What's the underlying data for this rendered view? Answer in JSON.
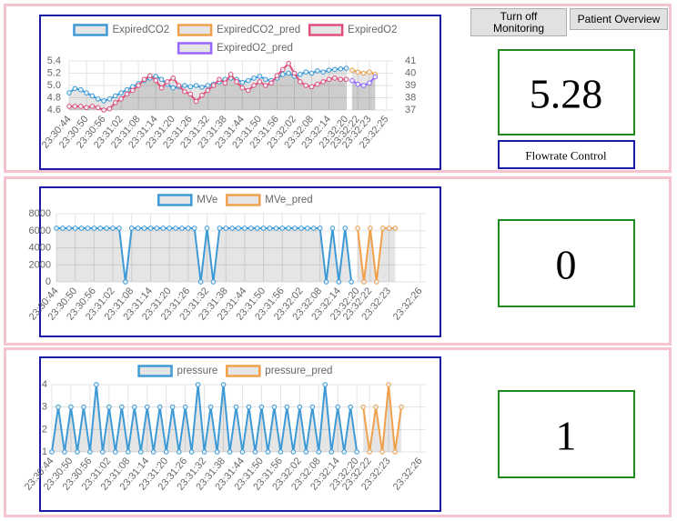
{
  "buttons": [
    "Turn off Monitoring",
    "Patient Overview"
  ],
  "flowrate_control": "Flowrate Control",
  "displays": [
    5.28,
    0,
    1
  ],
  "chart_data": [
    {
      "type": "line",
      "legend": "top",
      "grid": true,
      "categories": [
        "23:30:44",
        null,
        null,
        "23:30:50",
        null,
        null,
        "23:30:56",
        null,
        null,
        "23:31:02",
        null,
        null,
        "23:31:08",
        null,
        null,
        "23:31:14",
        null,
        null,
        "23:31:20",
        null,
        null,
        "23:31:26",
        null,
        null,
        "23:31:32",
        null,
        null,
        "23:31:38",
        null,
        null,
        "23:31:44",
        null,
        null,
        "23:31:50",
        null,
        null,
        "23:31:56",
        null,
        null,
        "23:32:02",
        null,
        null,
        "23:32:08",
        null,
        null,
        "23:32:14",
        null,
        null,
        "23:32:20",
        null,
        "23:32:22",
        null,
        "23:32:23",
        null,
        null,
        "23:32:25"
      ],
      "ylim": [
        4.6,
        5.4
      ],
      "yticks": [
        4.6,
        4.8,
        {
          "value": 5,
          "label": "5.0"
        },
        5.2,
        5.4
      ],
      "y2lim": [
        37,
        41
      ],
      "y2ticks": [
        37,
        38,
        39,
        40,
        41
      ],
      "series": [
        {
          "name": "ExpiredCO2",
          "color": "#3d9ad6",
          "values": [
            4.88,
            4.95,
            4.93,
            4.88,
            4.83,
            4.78,
            4.75,
            4.78,
            4.83,
            4.88,
            4.93,
            4.98,
            5.03,
            5.08,
            5.12,
            5.15,
            5.1,
            5.02,
            4.96,
            4.98,
            5.0,
            4.98,
            5.0,
            4.97,
            5.0,
            5.02,
            5.06,
            5.1,
            5.12,
            5.1,
            5.05,
            5.08,
            5.12,
            5.15,
            5.1,
            5.08,
            5.12,
            5.18,
            5.2,
            5.15,
            5.18,
            5.22,
            5.2,
            5.24,
            5.22,
            5.25,
            5.26,
            5.27,
            5.28,
            null,
            null,
            null,
            null,
            null,
            null,
            null
          ]
        },
        {
          "name": "ExpiredCO2_pred",
          "color": "#f0a04b",
          "values": [
            null,
            null,
            null,
            null,
            null,
            null,
            null,
            null,
            null,
            null,
            null,
            null,
            null,
            null,
            null,
            null,
            null,
            null,
            null,
            null,
            null,
            null,
            null,
            null,
            null,
            null,
            null,
            null,
            null,
            null,
            null,
            null,
            null,
            null,
            null,
            null,
            null,
            null,
            null,
            null,
            null,
            null,
            null,
            null,
            null,
            null,
            null,
            null,
            null,
            5.25,
            5.22,
            5.2,
            5.22,
            5.18,
            null,
            null
          ]
        },
        {
          "name": "ExpiredO2",
          "color": "#e0507b",
          "axis": "y2",
          "values": [
            37.3,
            37.3,
            37.3,
            37.2,
            37.3,
            37.2,
            37.0,
            37.1,
            37.6,
            37.9,
            38.3,
            38.6,
            39.0,
            39.5,
            39.8,
            39.4,
            38.8,
            39.3,
            39.6,
            39.0,
            38.5,
            38.3,
            37.7,
            38.2,
            38.6,
            39.0,
            39.5,
            39.2,
            39.9,
            39.3,
            38.8,
            38.6,
            39.0,
            39.3,
            39.0,
            39.2,
            39.8,
            40.3,
            40.8,
            40.0,
            39.3,
            39.0,
            38.9,
            39.1,
            39.3,
            39.5,
            39.6,
            39.5,
            39.5,
            null,
            null,
            null,
            null,
            null,
            null,
            null
          ]
        },
        {
          "name": "ExpiredO2_pred",
          "color": "#9966ff",
          "axis": "y2",
          "values": [
            null,
            null,
            null,
            null,
            null,
            null,
            null,
            null,
            null,
            null,
            null,
            null,
            null,
            null,
            null,
            null,
            null,
            null,
            null,
            null,
            null,
            null,
            null,
            null,
            null,
            null,
            null,
            null,
            null,
            null,
            null,
            null,
            null,
            null,
            null,
            null,
            null,
            null,
            null,
            null,
            null,
            null,
            null,
            null,
            null,
            null,
            null,
            null,
            null,
            39.4,
            39.1,
            39.0,
            39.2,
            39.7,
            null,
            null
          ]
        }
      ]
    },
    {
      "type": "line",
      "legend": "top",
      "grid": true,
      "categories": [
        "23:30:44",
        null,
        null,
        "23:30:50",
        null,
        null,
        "23:30:56",
        null,
        null,
        "23:31:02",
        null,
        null,
        "23:31:08",
        null,
        null,
        "23:31:14",
        null,
        null,
        "23:31:20",
        null,
        null,
        "23:31:26",
        null,
        null,
        "23:31:32",
        null,
        null,
        "23:31:38",
        null,
        null,
        "23:31:44",
        null,
        null,
        "23:31:50",
        null,
        null,
        "23:31:56",
        null,
        null,
        "23:32:02",
        null,
        null,
        "23:32:08",
        null,
        null,
        "23:32:14",
        null,
        null,
        "23:32:20",
        null,
        "23:32:22",
        null,
        null,
        "23:32:23",
        null,
        null,
        null,
        null,
        "23:32:26"
      ],
      "ylim": [
        0,
        8000
      ],
      "yticks": [
        0,
        2000,
        4000,
        6000,
        8000
      ],
      "series": [
        {
          "name": "MVe",
          "color": "#3d9ad6",
          "values": [
            6300,
            6300,
            6300,
            6300,
            6300,
            6300,
            6300,
            6300,
            6300,
            6300,
            6300,
            0,
            6300,
            6300,
            6300,
            6300,
            6300,
            6300,
            6300,
            6300,
            6300,
            6300,
            6300,
            0,
            6300,
            0,
            6300,
            6300,
            6300,
            6300,
            6300,
            6300,
            6300,
            6300,
            6300,
            6300,
            6300,
            6300,
            6300,
            6300,
            6300,
            6300,
            6300,
            0,
            6300,
            0,
            6300,
            0,
            null,
            null,
            null,
            null,
            null,
            null,
            null,
            null,
            null,
            null,
            null
          ]
        },
        {
          "name": "MVe_pred",
          "color": "#f0a04b",
          "values": [
            null,
            null,
            null,
            null,
            null,
            null,
            null,
            null,
            null,
            null,
            null,
            null,
            null,
            null,
            null,
            null,
            null,
            null,
            null,
            null,
            null,
            null,
            null,
            null,
            null,
            null,
            null,
            null,
            null,
            null,
            null,
            null,
            null,
            null,
            null,
            null,
            null,
            null,
            null,
            null,
            null,
            null,
            null,
            null,
            null,
            null,
            null,
            null,
            6300,
            0,
            6300,
            0,
            6300,
            6300,
            6300,
            null,
            null,
            null,
            null
          ]
        }
      ]
    },
    {
      "type": "line",
      "legend": "top",
      "grid": true,
      "categories": [
        "23:30:44",
        null,
        null,
        "23:30:50",
        null,
        null,
        "23:30:56",
        null,
        null,
        "23:31:02",
        null,
        null,
        "23:31:08",
        null,
        null,
        "23:31:14",
        null,
        null,
        "23:31:20",
        null,
        null,
        "23:31:26",
        null,
        null,
        "23:31:32",
        null,
        null,
        "23:31:38",
        null,
        null,
        "23:31:44",
        null,
        null,
        "23:31:50",
        null,
        null,
        "23:31:56",
        null,
        null,
        "23:32:02",
        null,
        null,
        "23:32:08",
        null,
        null,
        "23:32:14",
        null,
        null,
        "23:32:20",
        null,
        "23:32:22",
        null,
        null,
        "23:32:23",
        null,
        null,
        null,
        null,
        "23:32:26"
      ],
      "ylim": [
        1,
        4
      ],
      "yticks": [
        1,
        2,
        3,
        4
      ],
      "series": [
        {
          "name": "pressure",
          "color": "#3d9ad6",
          "values": [
            1,
            3,
            1,
            3,
            1,
            3,
            1,
            4,
            1,
            3,
            1,
            3,
            1,
            3,
            1,
            3,
            1,
            3,
            1,
            3,
            1,
            3,
            1,
            4,
            1,
            3,
            1,
            4,
            1,
            3,
            1,
            3,
            1,
            3,
            1,
            3,
            1,
            3,
            1,
            3,
            1,
            3,
            1,
            4,
            1,
            3,
            1,
            3,
            1,
            null,
            null,
            null,
            null,
            null,
            null,
            null,
            null,
            null,
            null
          ]
        },
        {
          "name": "pressure_pred",
          "color": "#f0a04b",
          "values": [
            null,
            null,
            null,
            null,
            null,
            null,
            null,
            null,
            null,
            null,
            null,
            null,
            null,
            null,
            null,
            null,
            null,
            null,
            null,
            null,
            null,
            null,
            null,
            null,
            null,
            null,
            null,
            null,
            null,
            null,
            null,
            null,
            null,
            null,
            null,
            null,
            null,
            null,
            null,
            null,
            null,
            null,
            null,
            null,
            null,
            null,
            null,
            null,
            null,
            3,
            1,
            3,
            1,
            4,
            1,
            3,
            null,
            null,
            null
          ]
        }
      ]
    }
  ]
}
